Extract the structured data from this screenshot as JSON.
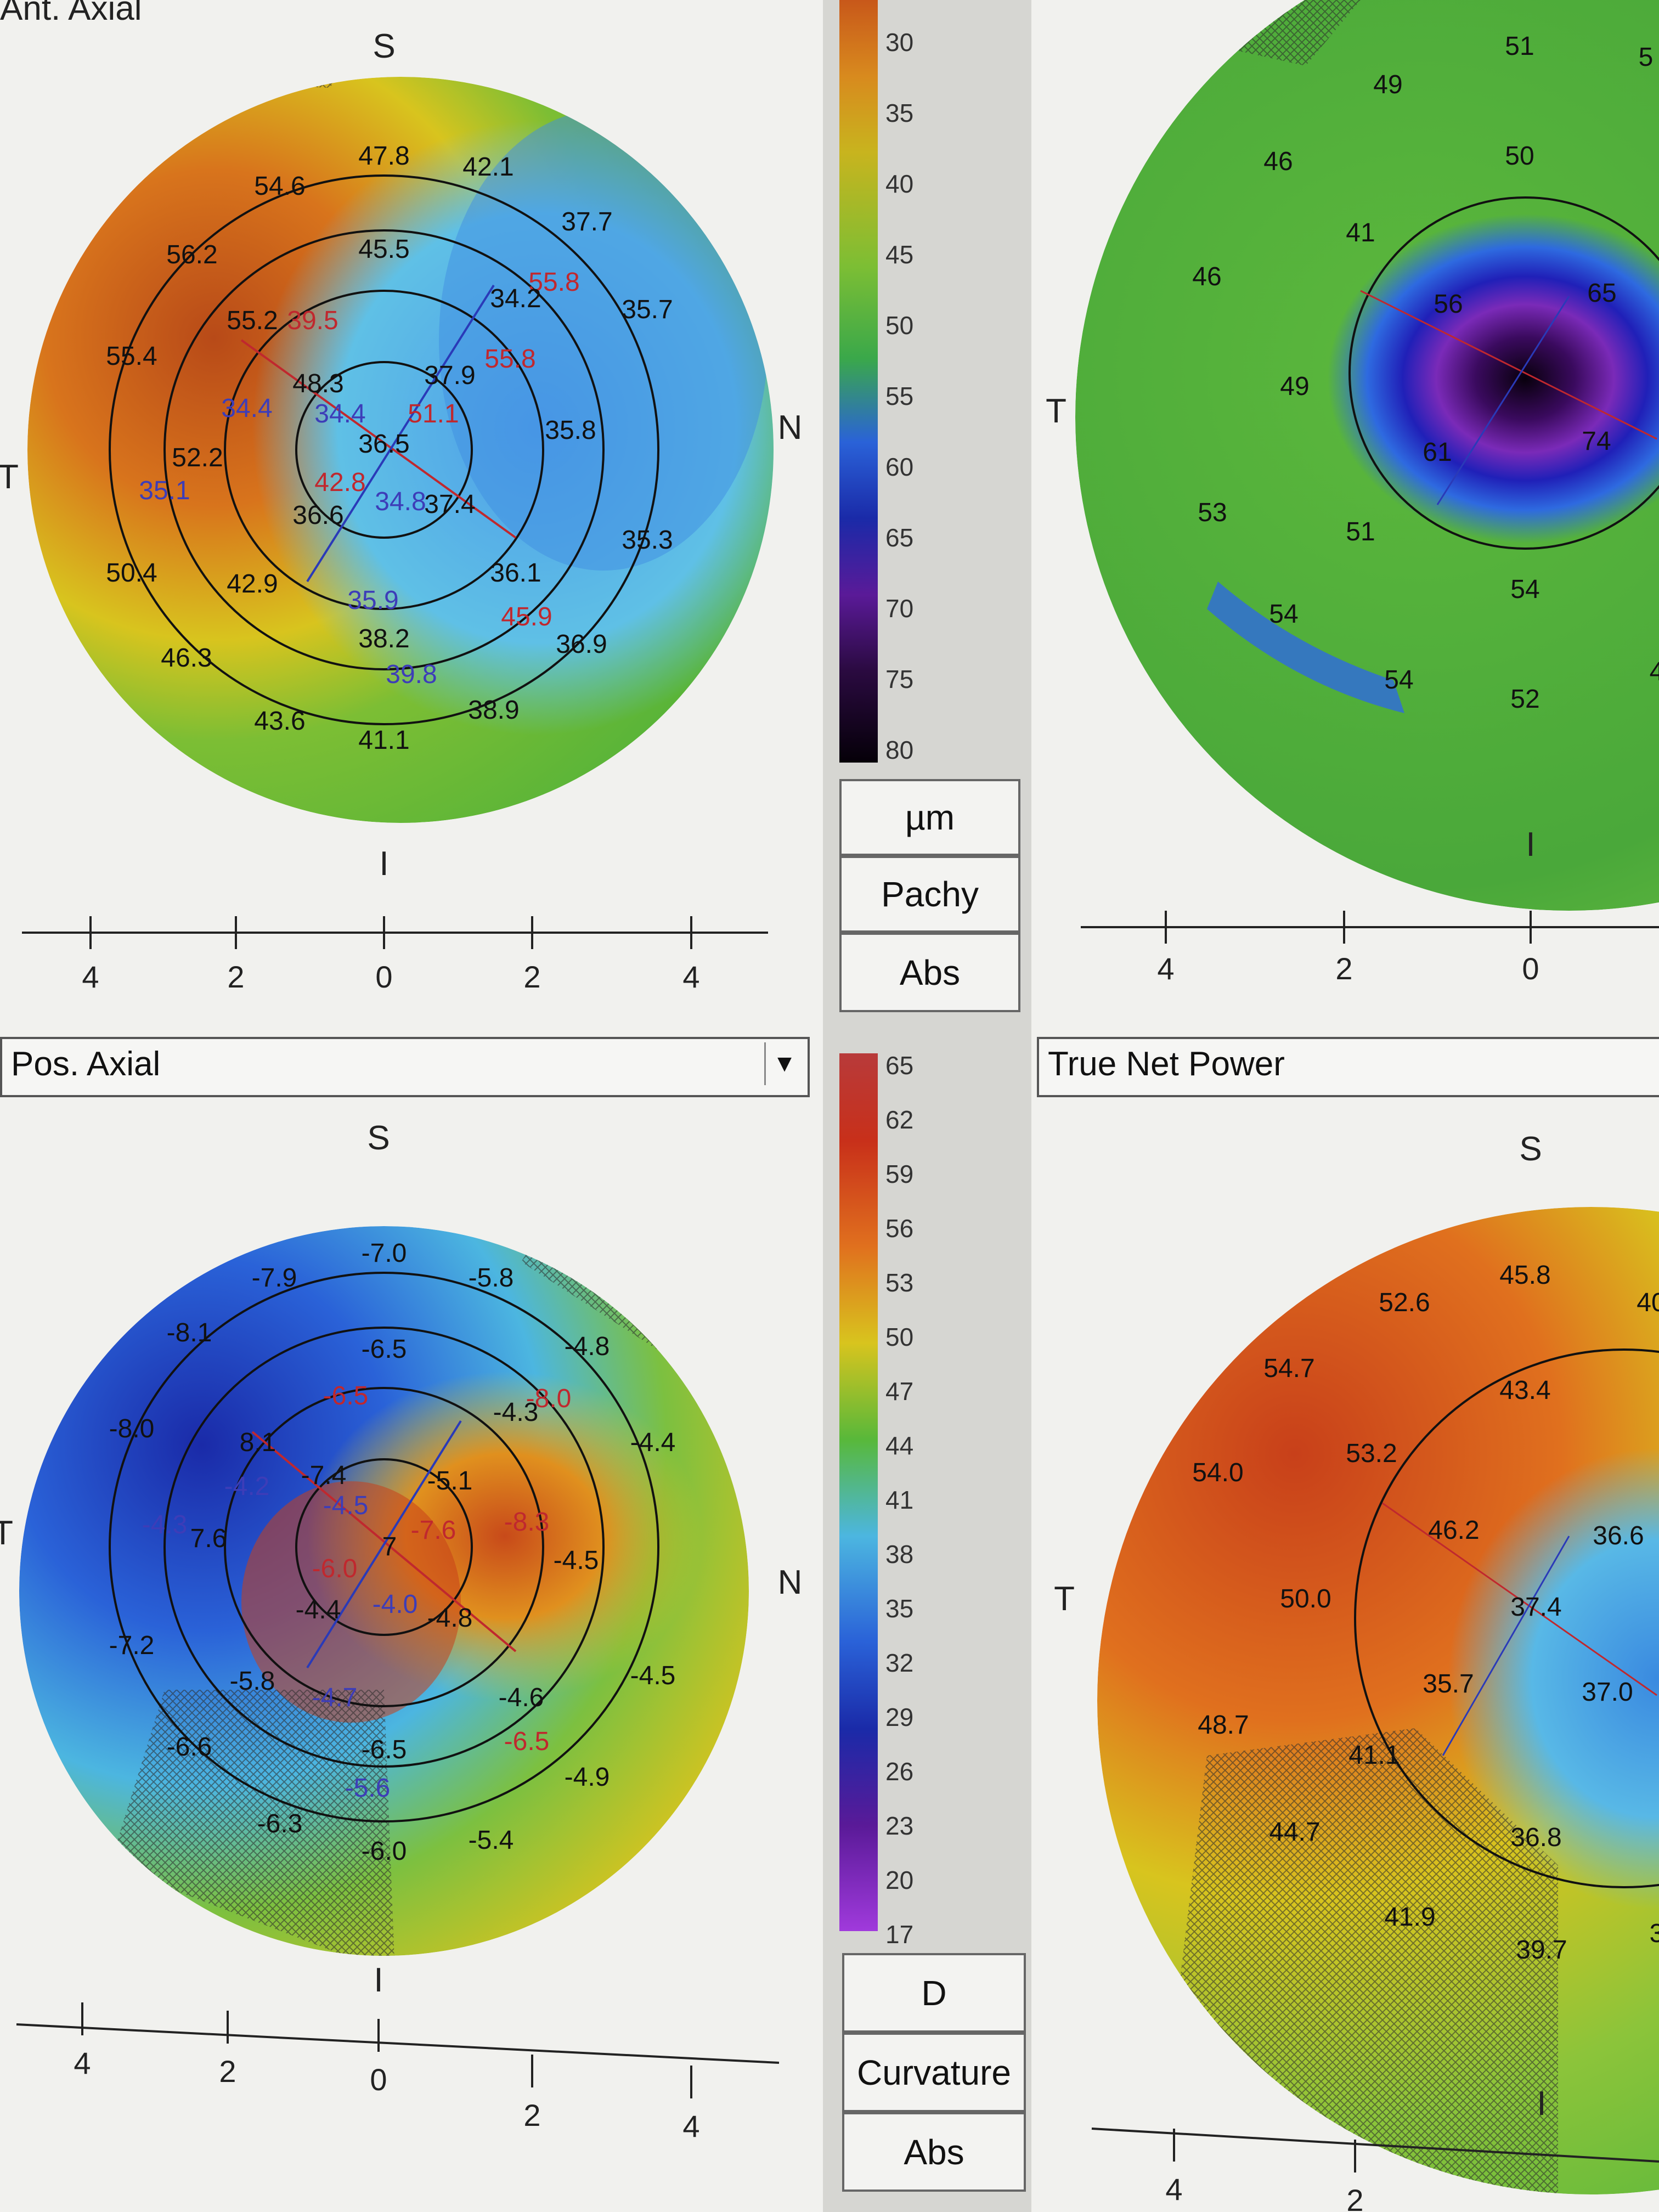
{
  "panels": {
    "top_left": {
      "title": "Ant. Axial",
      "orientation": {
        "top": "S",
        "bottom": "I",
        "left": "T",
        "right": "N"
      },
      "values": [
        "47.8",
        "42.1",
        "54.6",
        "37.7",
        "56.2",
        "45.5",
        "55.8",
        "35.7",
        "55.2",
        "39.5",
        "34.2",
        "55.4",
        "48.3",
        "37.9",
        "55.8",
        "34.4",
        "34.4",
        "51.1",
        "35.8",
        "52.2",
        "36.5",
        "35.1",
        "42.8",
        "34.8",
        "37.4",
        "36.6",
        "35.3",
        "50.4",
        "42.9",
        "36.1",
        "35.9",
        "45.9",
        "38.2",
        "36.9",
        "46.3",
        "39.8",
        "43.6",
        "38.9",
        "41.1"
      ],
      "scale_ticks": [
        "4",
        "2",
        "0",
        "2",
        "4"
      ]
    },
    "top_right": {
      "orientation": {
        "bottom": "I",
        "left": "T"
      },
      "values": [
        "51",
        "5",
        "49",
        "50",
        "46",
        "41",
        "46",
        "56",
        "65",
        "49",
        "61",
        "74",
        "53",
        "51",
        "54",
        "54",
        "54",
        "52",
        "4"
      ],
      "scale_ticks": [
        "4",
        "2",
        "0"
      ]
    },
    "bottom_left": {
      "title": "Pos. Axial",
      "orientation": {
        "top": "S",
        "bottom": "I",
        "left": "T",
        "right": "N"
      },
      "values": [
        "-7.0",
        "-7.9",
        "-5.8",
        "-8.1",
        "-6.5",
        "-4.8",
        "-6.5",
        "-8.0",
        "-8.0",
        "8.1",
        "-4.3",
        "-4.4",
        "-7.4",
        "-5.1",
        "-4.2",
        "-4.5",
        "-4.3",
        "7.6",
        "-7.6",
        "-8.3",
        "-4.5",
        "7",
        "-6.0",
        "-4.4",
        "-4.0",
        "-4.8",
        "-7.2",
        "-5.8",
        "-4.5",
        "-4.7",
        "-4.6",
        "-6.6",
        "-6.5",
        "-6.5",
        "-5.6",
        "-4.9",
        "-6.3",
        "-6.0",
        "-5.4"
      ],
      "scale_ticks": [
        "4",
        "2",
        "0",
        "2",
        "4"
      ]
    },
    "bottom_right": {
      "title": "True Net Power",
      "orientation": {
        "top": "S",
        "bottom": "I",
        "left": "T"
      },
      "values": [
        "45.8",
        "40",
        "52.6",
        "54.7",
        "43.4",
        "54.0",
        "53.2",
        "46.2",
        "36.6",
        "50.0",
        "37.4",
        "35.7",
        "37.0",
        "48.7",
        "41.1",
        "44.7",
        "36.8",
        "41.9",
        "39.7",
        "3"
      ],
      "scale_ticks": [
        "4",
        "2"
      ]
    }
  },
  "legend_top": {
    "ticks": [
      "30",
      "35",
      "40",
      "45",
      "50",
      "55",
      "60",
      "65",
      "70",
      "75",
      "80"
    ],
    "buttons": [
      "µm",
      "Pachy",
      "Abs"
    ]
  },
  "legend_bottom": {
    "ticks": [
      "65",
      "62",
      "59",
      "56",
      "53",
      "50",
      "47",
      "44",
      "41",
      "38",
      "35",
      "32",
      "29",
      "26",
      "23",
      "20",
      "17"
    ],
    "buttons": [
      "D",
      "Curvature",
      "Abs"
    ]
  },
  "colors": {
    "red": "#c0282e",
    "orange": "#e06a1a",
    "yellow": "#d8c41e",
    "green": "#58b83a",
    "cyan": "#4cb6e0",
    "blue": "#2a5fd8",
    "navy": "#1a2aa8",
    "purple": "#6a1aa8",
    "black": "#0a0010"
  }
}
